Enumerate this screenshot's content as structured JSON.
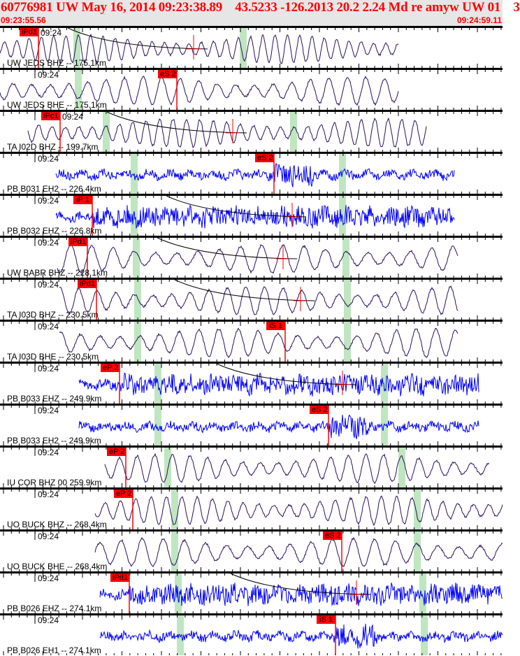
{
  "header": {
    "title": "60776981 UW May 16, 2014 09:23:38.89    43.5233 -126.2013 20.2 2.24 Md re amyw UW 01    3",
    "start_time": "09:23:55.56",
    "end_time": "09:24:59.11"
  },
  "minute_label": "09:24",
  "colors": {
    "broadband": "#2a0f5c",
    "short_period": "#0000ff",
    "pick": "#ff0000",
    "window": "#bfe6c0"
  },
  "traces": [
    {
      "label": "UW JEDS BHZ -- 175.1km",
      "pick": "iPd1",
      "type": "broadband"
    },
    {
      "label": "UW JEDS BHE -- 175.1km",
      "pick": "eS 2",
      "type": "broadband"
    },
    {
      "label": "TA I02D BHZ -- 199.7km",
      "pick": "iPc1",
      "type": "broadband"
    },
    {
      "label": "PB B031 EH2 -- 226.4km",
      "pick": "eS 2",
      "type": "short_period"
    },
    {
      "label": "PB B032 EHZ -- 226.8km",
      "pick": "iP 1",
      "type": "short_period"
    },
    {
      "label": "UW BABR BHZ -- 228.1km",
      "pick": "iPd1",
      "type": "broadband"
    },
    {
      "label": "TA I03D BHZ -- 230.5km",
      "pick": "iPd1",
      "type": "broadband"
    },
    {
      "label": "TA I03D BHE -- 230.5km",
      "pick": "iS 1",
      "type": "broadband"
    },
    {
      "label": "PB B033 EHZ -- 249.9km",
      "pick": "eP 2",
      "type": "short_period"
    },
    {
      "label": "PB B033 EH2 -- 249.9km",
      "pick": "eS 2",
      "type": "short_period"
    },
    {
      "label": "IU COR BHZ 00 259.9km",
      "pick": "eP 2",
      "type": "broadband"
    },
    {
      "label": "UO BUCK BHZ -- 268.4km",
      "pick": "eP 2",
      "type": "broadband"
    },
    {
      "label": "UO BUCK BHE -- 268.4km",
      "pick": "eS 2",
      "type": "broadband"
    },
    {
      "label": "PB B026 EHZ -- 274.1km",
      "pick": "iPd1",
      "type": "short_period"
    },
    {
      "label": "PB B026 EH1 -- 274.1km",
      "pick": "iS 1",
      "type": "short_period"
    }
  ]
}
